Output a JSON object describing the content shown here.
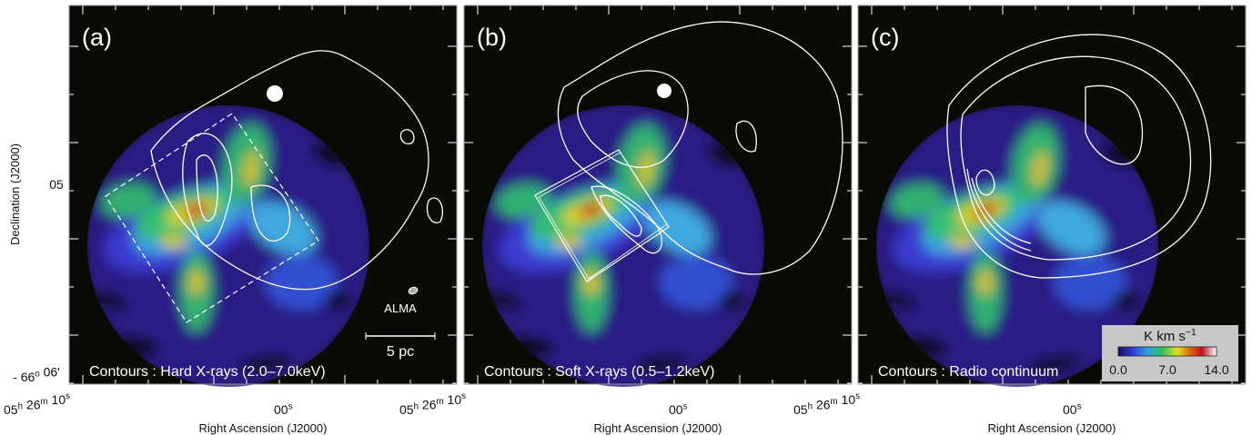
{
  "panels": [
    {
      "label": "(a)",
      "contour_label": "Contours : Hard X-rays (2.0–7.0keV)",
      "x_ticks": [
        [
          [
            "05",
            "h"
          ],
          [
            " 26",
            "m"
          ],
          [
            " 10",
            "s"
          ]
        ],
        [
          [
            "00",
            "s"
          ]
        ]
      ],
      "x_axis_label": "Right Ascension (J2000)"
    },
    {
      "label": "(b)",
      "contour_label": "Contours : Soft X-rays (0.5–1.2keV)",
      "x_ticks": [
        [
          [
            "05",
            "h"
          ],
          [
            " 26",
            "m"
          ],
          [
            " 10",
            "s"
          ]
        ],
        [
          [
            "00",
            "s"
          ]
        ]
      ],
      "x_axis_label": "Right Ascension (J2000)"
    },
    {
      "label": "(c)",
      "contour_label": "Contours : Radio continuum",
      "x_ticks": [
        [
          [
            "05",
            "h"
          ],
          [
            " 26",
            "m"
          ],
          [
            " 10",
            "s"
          ]
        ],
        [
          [
            "00",
            "s"
          ]
        ]
      ],
      "x_axis_label": "Right Ascension (J2000)"
    }
  ],
  "y_axis": {
    "label": "Declination (J2000)",
    "ticks": [
      [
        [
          "05"
        ]
      ],
      [
        [
          "- 66",
          "o"
        ],
        [
          " 06'"
        ]
      ]
    ]
  },
  "beam_label": "ALMA",
  "scale_bar": "5 pc",
  "colorbar": {
    "title": [
      [
        "K km s",
        "−1"
      ]
    ],
    "ticks": [
      "0.0",
      "7.0",
      "14.0"
    ]
  }
}
